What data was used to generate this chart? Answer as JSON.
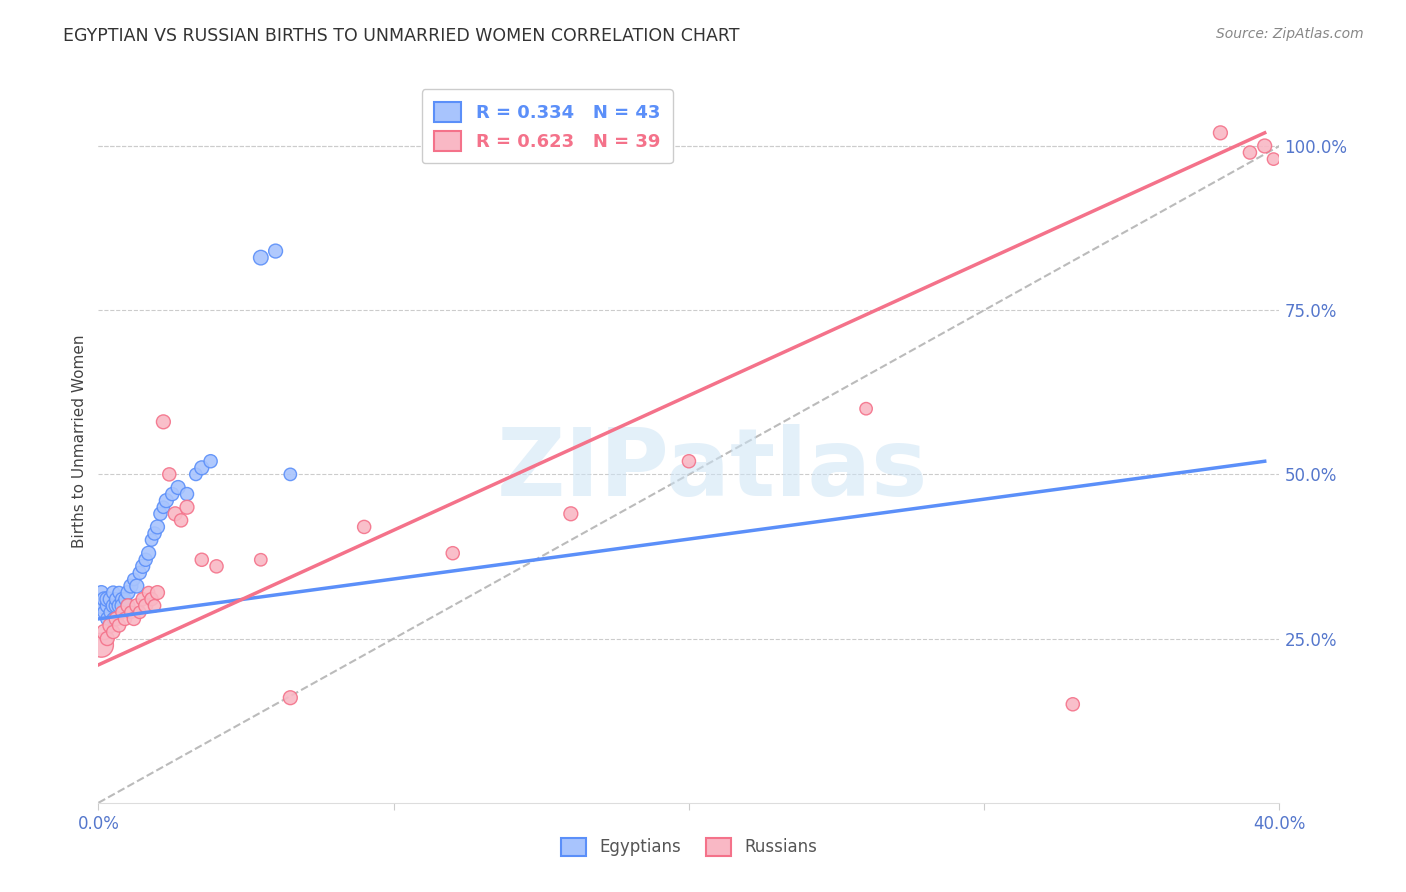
{
  "title": "EGYPTIAN VS RUSSIAN BIRTHS TO UNMARRIED WOMEN CORRELATION CHART",
  "source": "Source: ZipAtlas.com",
  "ylabel": "Births to Unmarried Women",
  "ytick_labels": [
    "100.0%",
    "75.0%",
    "50.0%",
    "25.0%"
  ],
  "ytick_values": [
    1.0,
    0.75,
    0.5,
    0.25
  ],
  "xlim": [
    0.0,
    0.4
  ],
  "ylim": [
    0.0,
    1.1
  ],
  "ymax_line": 1.0,
  "egypt_color": "#5b8ff9",
  "egypt_color_fill": "#a8c4fd",
  "russia_color": "#f4728a",
  "russia_color_fill": "#f9b8c5",
  "egypt_R": "0.334",
  "egypt_N": "43",
  "russia_R": "0.623",
  "russia_N": "39",
  "legend_label_egypt": "Egyptians",
  "legend_label_russia": "Russians",
  "watermark": "ZIPatlas",
  "egypt_scatter_x": [
    0.001,
    0.001,
    0.002,
    0.002,
    0.003,
    0.003,
    0.003,
    0.004,
    0.004,
    0.005,
    0.005,
    0.005,
    0.006,
    0.006,
    0.007,
    0.007,
    0.008,
    0.008,
    0.009,
    0.01,
    0.01,
    0.011,
    0.012,
    0.013,
    0.014,
    0.015,
    0.016,
    0.017,
    0.018,
    0.019,
    0.02,
    0.021,
    0.022,
    0.023,
    0.025,
    0.027,
    0.03,
    0.033,
    0.035,
    0.038,
    0.055,
    0.06,
    0.065
  ],
  "egypt_scatter_y": [
    0.3,
    0.32,
    0.31,
    0.29,
    0.3,
    0.31,
    0.28,
    0.31,
    0.29,
    0.3,
    0.32,
    0.28,
    0.3,
    0.31,
    0.3,
    0.32,
    0.31,
    0.3,
    0.31,
    0.32,
    0.3,
    0.33,
    0.34,
    0.33,
    0.35,
    0.36,
    0.37,
    0.38,
    0.4,
    0.41,
    0.42,
    0.44,
    0.45,
    0.46,
    0.47,
    0.48,
    0.47,
    0.5,
    0.51,
    0.52,
    0.83,
    0.84,
    0.5
  ],
  "egypt_scatter_sizes": [
    120,
    100,
    110,
    90,
    100,
    110,
    90,
    100,
    80,
    100,
    90,
    80,
    100,
    90,
    100,
    80,
    90,
    100,
    80,
    100,
    90,
    100,
    80,
    100,
    90,
    100,
    90,
    100,
    80,
    90,
    100,
    90,
    80,
    100,
    90,
    100,
    90,
    80,
    100,
    90,
    110,
    100,
    80
  ],
  "russia_scatter_x": [
    0.001,
    0.002,
    0.003,
    0.004,
    0.005,
    0.006,
    0.007,
    0.008,
    0.009,
    0.01,
    0.011,
    0.012,
    0.013,
    0.014,
    0.015,
    0.016,
    0.017,
    0.018,
    0.019,
    0.02,
    0.022,
    0.024,
    0.026,
    0.028,
    0.03,
    0.035,
    0.04,
    0.055,
    0.065,
    0.09,
    0.12,
    0.16,
    0.2,
    0.26,
    0.33,
    0.38,
    0.39,
    0.395,
    0.398
  ],
  "russia_scatter_y": [
    0.24,
    0.26,
    0.25,
    0.27,
    0.26,
    0.28,
    0.27,
    0.29,
    0.28,
    0.3,
    0.29,
    0.28,
    0.3,
    0.29,
    0.31,
    0.3,
    0.32,
    0.31,
    0.3,
    0.32,
    0.58,
    0.5,
    0.44,
    0.43,
    0.45,
    0.37,
    0.36,
    0.37,
    0.16,
    0.42,
    0.38,
    0.44,
    0.52,
    0.6,
    0.15,
    1.02,
    0.99,
    1.0,
    0.98
  ],
  "russia_scatter_sizes": [
    300,
    120,
    100,
    110,
    90,
    100,
    90,
    80,
    90,
    100,
    80,
    90,
    100,
    80,
    90,
    100,
    80,
    90,
    80,
    100,
    100,
    90,
    100,
    90,
    100,
    90,
    90,
    80,
    100,
    90,
    90,
    100,
    90,
    80,
    90,
    100,
    90,
    100,
    80
  ],
  "egypt_line_x": [
    0.0,
    0.395
  ],
  "egypt_line_y": [
    0.28,
    0.52
  ],
  "russia_line_x": [
    0.0,
    0.395
  ],
  "russia_line_y": [
    0.21,
    1.02
  ],
  "diagonal_line_x": [
    0.0,
    0.4
  ],
  "diagonal_line_y": [
    0.0,
    1.0
  ]
}
